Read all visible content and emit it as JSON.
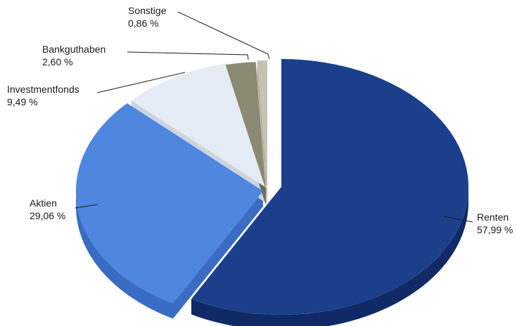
{
  "chart_data": {
    "type": "pie",
    "title": "",
    "slices": [
      {
        "label": "Renten",
        "value_label": "57,99 %",
        "value": 57.99,
        "color": "#1b3f8b",
        "side_color": "#0f2a66"
      },
      {
        "label": "Aktien",
        "value_label": "29,06 %",
        "value": 29.06,
        "color": "#4f86e0",
        "side_color": "#3a6cc4"
      },
      {
        "label": "Investmentfonds",
        "value_label": "9,49 %",
        "value": 9.49,
        "color": "#e6ecf6",
        "side_color": "#cdd4df"
      },
      {
        "label": "Bankguthaben",
        "value_label": "2,60 %",
        "value": 2.6,
        "color": "#8a8a72",
        "side_color": "#6d6d58"
      },
      {
        "label": "Sonstige",
        "value_label": "0,86 %",
        "value": 0.86,
        "color": "#c4c3b5",
        "side_color": "#a9a89a"
      }
    ],
    "exploded": true,
    "legend": "none"
  }
}
